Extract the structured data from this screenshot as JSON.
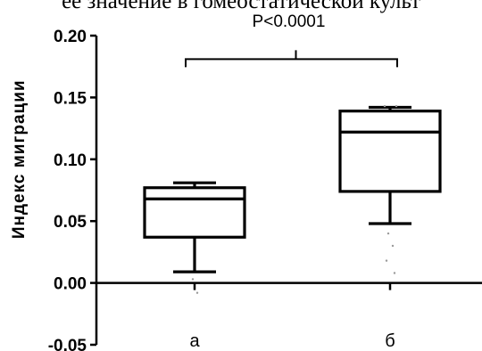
{
  "caption_fragment": "ее значение в гомеостатической культ",
  "chart_data": {
    "type": "box",
    "ylabel": "Индекс миграции",
    "xlabel": "",
    "title": "",
    "ylim": [
      -0.05,
      0.2
    ],
    "yticks": [
      "0.20",
      "0.15",
      "0.10",
      "0.05",
      "0.00",
      "-0.05"
    ],
    "ytick_values": [
      0.2,
      0.15,
      0.1,
      0.05,
      0.0,
      -0.05
    ],
    "categories": [
      "а",
      "б"
    ],
    "boxes": [
      {
        "category": "а",
        "whisker_low": 0.009,
        "q1": 0.037,
        "median": 0.068,
        "q3": 0.077,
        "whisker_high": 0.081,
        "outliers": [
          0.003,
          -0.008
        ]
      },
      {
        "category": "б",
        "whisker_low": 0.048,
        "q1": 0.074,
        "median": 0.122,
        "q3": 0.139,
        "whisker_high": 0.142,
        "outliers": [
          0.04,
          0.03,
          0.018,
          0.008,
          0.143,
          0.143
        ]
      }
    ],
    "annotation": {
      "text": "P<0.0001",
      "bracket": [
        "а",
        "б"
      ],
      "y": 0.181
    },
    "grid": false,
    "legend": "none"
  }
}
